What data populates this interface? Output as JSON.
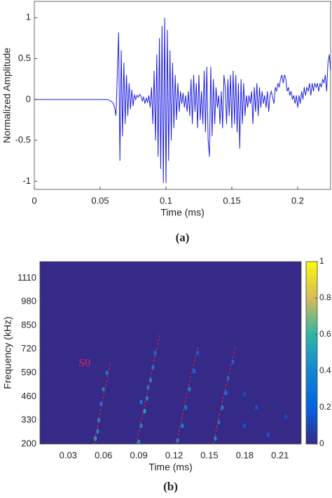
{
  "chart_data": [
    {
      "type": "line",
      "caption": "(a)",
      "xlabel": "Time (ms)",
      "ylabel": "Normalized Amplitude",
      "color": "#1f1fe0",
      "xlim": [
        0,
        0.225
      ],
      "xticks": [
        0,
        0.05,
        0.1,
        0.15,
        0.2
      ],
      "ylim": [
        -1.1,
        1.2
      ],
      "yticks": [
        -1,
        -0.5,
        0,
        0.5,
        1
      ],
      "x": [
        0,
        0.01,
        0.02,
        0.03,
        0.04,
        0.05,
        0.055,
        0.056,
        0.057,
        0.058,
        0.059,
        0.06,
        0.061,
        0.062,
        0.063,
        0.064,
        0.065,
        0.066,
        0.067,
        0.068,
        0.069,
        0.07,
        0.071,
        0.072,
        0.073,
        0.074,
        0.075,
        0.076,
        0.077,
        0.078,
        0.079,
        0.08,
        0.081,
        0.082,
        0.083,
        0.084,
        0.085,
        0.086,
        0.087,
        0.088,
        0.089,
        0.09,
        0.091,
        0.092,
        0.093,
        0.094,
        0.095,
        0.096,
        0.097,
        0.098,
        0.099,
        0.1,
        0.101,
        0.102,
        0.103,
        0.104,
        0.105,
        0.106,
        0.107,
        0.108,
        0.109,
        0.11,
        0.111,
        0.112,
        0.113,
        0.114,
        0.115,
        0.116,
        0.117,
        0.118,
        0.119,
        0.12,
        0.121,
        0.122,
        0.123,
        0.124,
        0.125,
        0.126,
        0.127,
        0.128,
        0.129,
        0.13,
        0.131,
        0.132,
        0.133,
        0.134,
        0.135,
        0.136,
        0.137,
        0.138,
        0.139,
        0.14,
        0.141,
        0.142,
        0.143,
        0.144,
        0.145,
        0.146,
        0.147,
        0.148,
        0.149,
        0.15,
        0.151,
        0.152,
        0.153,
        0.154,
        0.155,
        0.156,
        0.157,
        0.158,
        0.159,
        0.16,
        0.161,
        0.162,
        0.163,
        0.164,
        0.165,
        0.166,
        0.167,
        0.168,
        0.169,
        0.17,
        0.171,
        0.172,
        0.173,
        0.174,
        0.175,
        0.176,
        0.177,
        0.178,
        0.179,
        0.18,
        0.181,
        0.182,
        0.183,
        0.184,
        0.185,
        0.186,
        0.187,
        0.188,
        0.189,
        0.19,
        0.191,
        0.192,
        0.193,
        0.194,
        0.195,
        0.196,
        0.197,
        0.198,
        0.199,
        0.2,
        0.201,
        0.202,
        0.203,
        0.204,
        0.205,
        0.206,
        0.207,
        0.208,
        0.209,
        0.21,
        0.211,
        0.212,
        0.213,
        0.214,
        0.215,
        0.216,
        0.217,
        0.218,
        0.219,
        0.22,
        0.221,
        0.222,
        0.223,
        0.224,
        0.225
      ],
      "values": [
        0,
        0,
        0,
        0,
        0,
        0,
        0,
        0,
        -0.01,
        -0.02,
        -0.03,
        -0.05,
        -0.1,
        -0.2,
        0.3,
        0.82,
        -0.75,
        0.6,
        -0.45,
        0.45,
        -0.3,
        0.3,
        -0.2,
        0.2,
        -0.12,
        0.12,
        -0.08,
        0.06,
        0,
        0.05,
        0.03,
        0.06,
        0.04,
        -0.02,
        0.03,
        -0.05,
        0.02,
        -0.04,
        0.05,
        -0.1,
        0.15,
        -0.3,
        0.35,
        -0.5,
        0.55,
        -0.7,
        0.75,
        -0.85,
        0.9,
        -1.02,
        1.0,
        -1.02,
        0.85,
        -0.75,
        0.6,
        -0.5,
        0.45,
        -0.35,
        0.3,
        -0.25,
        0.2,
        -0.15,
        0.1,
        -0.05,
        0.08,
        -0.1,
        0.05,
        -0.15,
        0.1,
        -0.2,
        0.25,
        -0.3,
        0.3,
        -0.15,
        0.2,
        -0.35,
        0.3,
        -0.25,
        0.1,
        -0.3,
        0.35,
        -0.4,
        0.4,
        -0.5,
        -0.7,
        0.4,
        -0.45,
        0.25,
        -0.3,
        0.15,
        -0.1,
        0.05,
        -0.3,
        0.1,
        -0.35,
        0.3,
        0.15,
        -0.3,
        0.25,
        -0.2,
        0.3,
        -0.35,
        0.35,
        -0.3,
        0.3,
        -0.4,
        0.2,
        -0.6,
        0.25,
        -0.3,
        0.2,
        -0.2,
        0.05,
        -0.1,
        0.05,
        -0.05,
        0.1,
        -0.3,
        0.15,
        -0.15,
        0.2,
        -0.2,
        0.15,
        -0.1,
        0.1,
        -0.05,
        0.05,
        -0.1,
        0.1,
        -0.15,
        0.05,
        0.1,
        0.02,
        -0.05,
        0.15,
        0.1,
        0.2,
        0.15,
        0.25,
        0.3,
        0.2,
        0.3,
        0.25,
        0.1,
        0.15,
        0.05,
        0.1,
        0,
        0.05,
        -0.05,
        0.05,
        -0.1,
        0.05,
        -0.05,
        0.1,
        0,
        0.15,
        0.05,
        0.15,
        0.1,
        0.2,
        0.05,
        0.2,
        0.1,
        0.2,
        0.15,
        0.2,
        0.1,
        0.2,
        0.15,
        0.25,
        0.2,
        0.3,
        0.1,
        0.45,
        0.55,
        0.35
      ]
    },
    {
      "type": "heatmap",
      "caption": "(b)",
      "xlabel": "Time (ms)",
      "ylabel": "Frequency (kHz)",
      "xlim": [
        0.006,
        0.228
      ],
      "xticks": [
        0.03,
        0.06,
        0.09,
        0.12,
        0.15,
        0.18,
        0.21
      ],
      "ylim": [
        200,
        1200
      ],
      "yticks": [
        200,
        330,
        460,
        590,
        720,
        850,
        980,
        1110
      ],
      "zlim": [
        0,
        1
      ],
      "zticks": [
        0,
        0.2,
        0.4,
        0.6,
        0.8,
        1
      ],
      "colormap": [
        "#352a87",
        "#0363e1",
        "#1485d4",
        "#2eb7a4",
        "#d7ba56",
        "#f9fb0e"
      ],
      "ridge_color": "#e0204a",
      "annotation": {
        "text": "S0",
        "x": 0.044,
        "y": 640,
        "color": "#e0206a"
      },
      "ridges": [
        {
          "x": [
            0.052,
            0.059,
            0.066
          ],
          "y": [
            200,
            430,
            650
          ]
        },
        {
          "x": [
            0.088,
            0.097,
            0.108
          ],
          "y": [
            200,
            480,
            800
          ]
        },
        {
          "x": [
            0.122,
            0.13,
            0.14
          ],
          "y": [
            200,
            450,
            730
          ]
        },
        {
          "x": [
            0.153,
            0.162,
            0.172
          ],
          "y": [
            200,
            460,
            730
          ]
        }
      ],
      "spots": [
        {
          "x": 0.053,
          "y": 230,
          "z": 0.5
        },
        {
          "x": 0.055,
          "y": 270,
          "z": 0.4
        },
        {
          "x": 0.056,
          "y": 330,
          "z": 0.4
        },
        {
          "x": 0.058,
          "y": 420,
          "z": 0.3
        },
        {
          "x": 0.06,
          "y": 500,
          "z": 0.35
        },
        {
          "x": 0.063,
          "y": 590,
          "z": 0.3
        },
        {
          "x": 0.09,
          "y": 210,
          "z": 0.5
        },
        {
          "x": 0.092,
          "y": 300,
          "z": 0.4
        },
        {
          "x": 0.095,
          "y": 380,
          "z": 0.5
        },
        {
          "x": 0.097,
          "y": 450,
          "z": 0.4
        },
        {
          "x": 0.098,
          "y": 510,
          "z": 0.35
        },
        {
          "x": 0.1,
          "y": 550,
          "z": 0.4
        },
        {
          "x": 0.102,
          "y": 620,
          "z": 0.3
        },
        {
          "x": 0.104,
          "y": 700,
          "z": 0.25
        },
        {
          "x": 0.092,
          "y": 430,
          "z": 0.3
        },
        {
          "x": 0.123,
          "y": 220,
          "z": 0.4
        },
        {
          "x": 0.127,
          "y": 300,
          "z": 0.35
        },
        {
          "x": 0.13,
          "y": 400,
          "z": 0.3
        },
        {
          "x": 0.133,
          "y": 500,
          "z": 0.35
        },
        {
          "x": 0.137,
          "y": 600,
          "z": 0.25
        },
        {
          "x": 0.14,
          "y": 700,
          "z": 0.2
        },
        {
          "x": 0.155,
          "y": 230,
          "z": 0.4
        },
        {
          "x": 0.158,
          "y": 320,
          "z": 0.3
        },
        {
          "x": 0.161,
          "y": 400,
          "z": 0.35
        },
        {
          "x": 0.164,
          "y": 480,
          "z": 0.3
        },
        {
          "x": 0.166,
          "y": 560,
          "z": 0.25
        },
        {
          "x": 0.17,
          "y": 650,
          "z": 0.2
        },
        {
          "x": 0.18,
          "y": 300,
          "z": 0.15
        },
        {
          "x": 0.19,
          "y": 400,
          "z": 0.15
        },
        {
          "x": 0.2,
          "y": 250,
          "z": 0.15
        },
        {
          "x": 0.215,
          "y": 350,
          "z": 0.12
        },
        {
          "x": 0.18,
          "y": 470,
          "z": 0.12
        }
      ]
    }
  ]
}
